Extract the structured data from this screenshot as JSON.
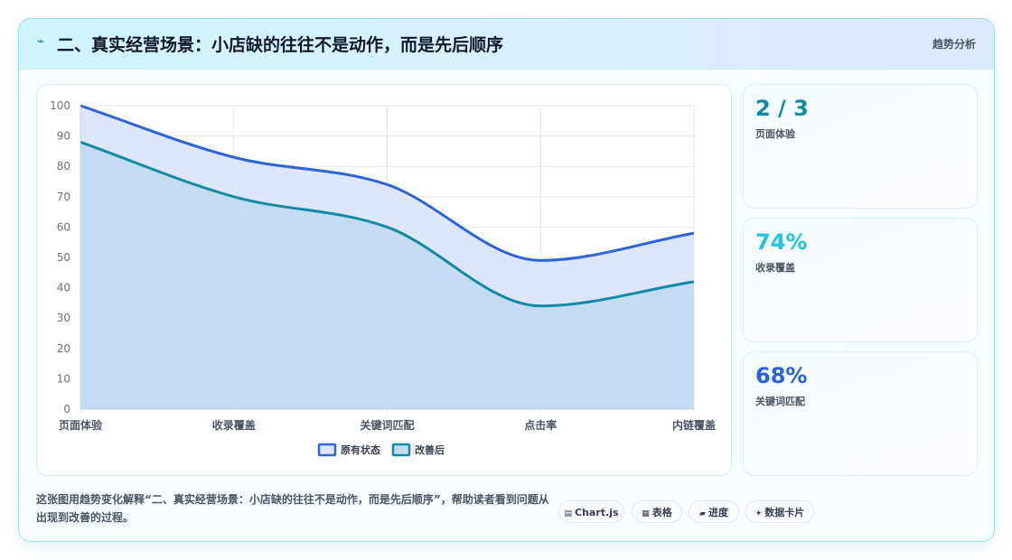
{
  "header": {
    "icon": "lightning-icon",
    "title": "二、真实经营场景：小店缺的往往不是动作，而是先后顺序",
    "tag": "趋势分析"
  },
  "stats": [
    {
      "value": "2 / 3",
      "label": "页面体验",
      "color": "#0e8aa6"
    },
    {
      "value": "74%",
      "label": "收录覆盖",
      "color": "#22c5dd"
    },
    {
      "value": "68%",
      "label": "关键词匹配",
      "color": "#2563d6"
    }
  ],
  "footer": {
    "description": "这张图用趋势变化解释“二、真实经营场景：小店缺的往往不是动作，而是先后顺序”，帮助读者看到问题从出现到改善的过程。"
  },
  "pills": [
    {
      "icon": "chart-icon",
      "glyph": "▤",
      "label": "Chart.js"
    },
    {
      "icon": "table-icon",
      "glyph": "▦",
      "label": "表格"
    },
    {
      "icon": "progress-icon",
      "glyph": "▰",
      "label": "进度"
    },
    {
      "icon": "sparkle-icon",
      "glyph": "✦",
      "label": "数据卡片"
    }
  ],
  "chart_data": {
    "type": "area",
    "categories": [
      "页面体验",
      "收录覆盖",
      "关键词匹配",
      "点击率",
      "内链覆盖"
    ],
    "series": [
      {
        "name": "原有状态",
        "values": [
          100,
          83,
          74,
          49,
          58
        ],
        "color": "#2f63d9",
        "fill": "#dde6fb"
      },
      {
        "name": "改善后",
        "values": [
          88,
          70,
          60,
          34,
          42
        ],
        "color": "#1289a6",
        "fill": "#c3dcf1"
      }
    ],
    "ylim": [
      0,
      100
    ],
    "yticks": [
      0,
      10,
      20,
      30,
      40,
      50,
      60,
      70,
      80,
      90,
      100
    ],
    "grid": true,
    "legend_position": "bottom"
  }
}
